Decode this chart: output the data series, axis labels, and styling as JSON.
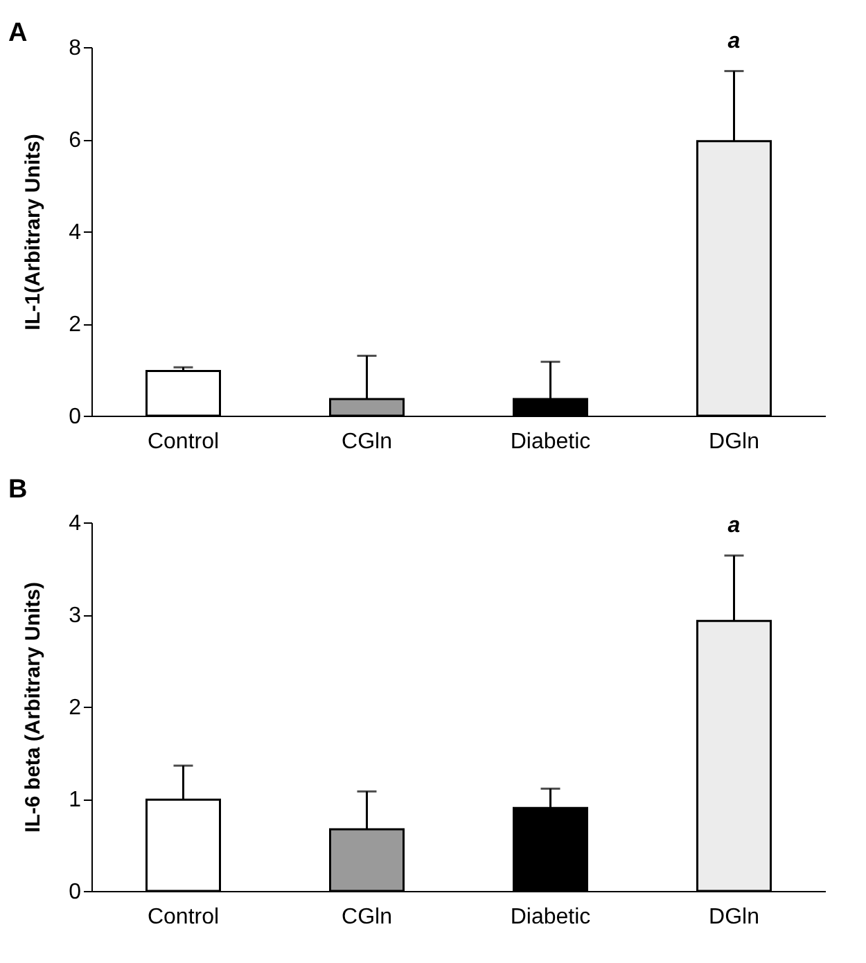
{
  "chart_data": [
    {
      "type": "bar",
      "title": "A",
      "ylabel": "IL-1(Arbitrary Units)",
      "categories": [
        "Control",
        "CGln",
        "Diabetic",
        "DGln"
      ],
      "values": [
        0.97,
        0.36,
        0.36,
        5.96
      ],
      "errors": [
        [
          0.97,
          1.05
        ],
        [
          0.36,
          1.3
        ],
        [
          0.36,
          1.17
        ],
        [
          5.96,
          7.48
        ]
      ],
      "colors": [
        "#ffffff",
        "#9a9a9a",
        "#000000",
        "#ececec"
      ],
      "ylim": [
        0,
        8
      ],
      "yticks": [
        0,
        2,
        4,
        6,
        8
      ],
      "grid": false,
      "annotations": [
        {
          "text": "a",
          "x": "DGln",
          "y": 7.48
        }
      ]
    },
    {
      "type": "bar",
      "title": "B",
      "ylabel": "IL-6 beta (Arbitrary Units)",
      "categories": [
        "Control",
        "CGln",
        "Diabetic",
        "DGln"
      ],
      "values": [
        0.99,
        0.67,
        0.9,
        2.93
      ],
      "errors": [
        [
          0.99,
          1.36
        ],
        [
          0.67,
          1.08
        ],
        [
          0.9,
          1.11
        ],
        [
          2.93,
          3.64
        ]
      ],
      "colors": [
        "#ffffff",
        "#9a9a9a",
        "#000000",
        "#ececec"
      ],
      "ylim": [
        0,
        4
      ],
      "yticks": [
        0,
        1,
        2,
        3,
        4
      ],
      "grid": false,
      "annotations": [
        {
          "text": "a",
          "x": "DGln",
          "y": 3.64
        }
      ]
    }
  ]
}
